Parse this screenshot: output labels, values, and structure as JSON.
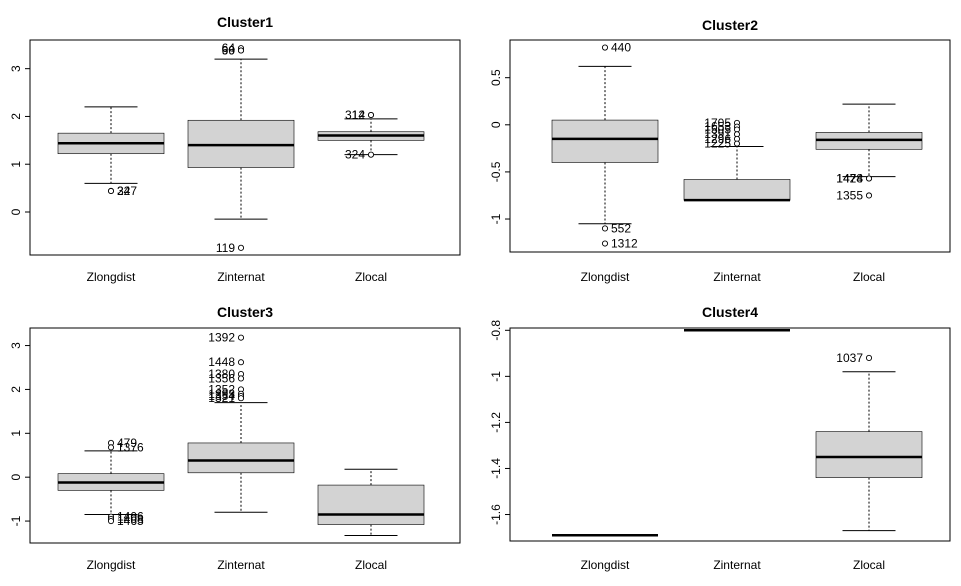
{
  "chart_data": [
    {
      "type": "boxplot",
      "title": "Cluster1",
      "categories": [
        "Zlongdist",
        "Zinternat",
        "Zlocal"
      ],
      "ylim": [
        -0.9,
        3.6
      ],
      "yticks": [
        0,
        1,
        2,
        3
      ],
      "boxes": [
        {
          "whisker_low": 0.6,
          "q1": 1.22,
          "median": 1.44,
          "q3": 1.65,
          "whisker_high": 2.2,
          "outliers": [
            {
              "value": 0.44,
              "label": "24"
            },
            {
              "value": 0.44,
              "label": "327"
            }
          ]
        },
        {
          "whisker_low": -0.15,
          "q1": 0.93,
          "median": 1.4,
          "q3": 1.92,
          "whisker_high": 3.2,
          "outliers": [
            {
              "value": 3.43,
              "label": "64"
            },
            {
              "value": 3.38,
              "label": "69"
            },
            {
              "value": 3.38,
              "label": "90"
            },
            {
              "value": -0.75,
              "label": "119"
            }
          ]
        },
        {
          "whisker_low": 1.2,
          "q1": 1.5,
          "median": 1.6,
          "q3": 1.68,
          "whisker_high": 1.95,
          "outliers": [
            {
              "value": 2.03,
              "label": "14"
            },
            {
              "value": 2.03,
              "label": "312"
            },
            {
              "value": 1.2,
              "label": "324"
            }
          ]
        }
      ]
    },
    {
      "type": "boxplot",
      "title": "Cluster2",
      "categories": [
        "Zlongdist",
        "Zinternat",
        "Zlocal"
      ],
      "ylim": [
        -1.35,
        0.9
      ],
      "yticks": [
        -1.0,
        -0.5,
        0.0,
        0.5
      ],
      "boxes": [
        {
          "whisker_low": -1.05,
          "q1": -0.4,
          "median": -0.15,
          "q3": 0.05,
          "whisker_high": 0.62,
          "outliers": [
            {
              "value": 0.82,
              "label": "440"
            },
            {
              "value": -1.1,
              "label": "552"
            },
            {
              "value": -1.26,
              "label": "1312"
            }
          ]
        },
        {
          "whisker_low": -0.8,
          "q1": -0.8,
          "median": -0.8,
          "q3": -0.58,
          "whisker_high": -0.23,
          "outliers": [
            {
              "value": 0.02,
              "label": "1705"
            },
            {
              "value": -0.02,
              "label": "1653"
            },
            {
              "value": -0.05,
              "label": "1505"
            },
            {
              "value": -0.1,
              "label": "1391"
            },
            {
              "value": -0.15,
              "label": "1296"
            },
            {
              "value": -0.2,
              "label": "1225"
            }
          ]
        },
        {
          "whisker_low": -0.55,
          "q1": -0.26,
          "median": -0.16,
          "q3": -0.08,
          "whisker_high": 0.22,
          "outliers": [
            {
              "value": -0.57,
              "label": "1424"
            },
            {
              "value": -0.57,
              "label": "1478"
            },
            {
              "value": -0.75,
              "label": "1355"
            }
          ]
        }
      ]
    },
    {
      "type": "boxplot",
      "title": "Cluster3",
      "categories": [
        "Zlongdist",
        "Zinternat",
        "Zlocal"
      ],
      "ylim": [
        -1.5,
        3.4
      ],
      "yticks": [
        -1,
        0,
        1,
        2,
        3
      ],
      "boxes": [
        {
          "whisker_low": -0.85,
          "q1": -0.3,
          "median": -0.12,
          "q3": 0.08,
          "whisker_high": 0.6,
          "outliers": [
            {
              "value": 0.78,
              "label": "479"
            },
            {
              "value": 0.68,
              "label": "1376"
            },
            {
              "value": -0.9,
              "label": "1406"
            },
            {
              "value": -0.95,
              "label": "1408"
            },
            {
              "value": -1.0,
              "label": "1465"
            }
          ]
        },
        {
          "whisker_low": -0.8,
          "q1": 0.1,
          "median": 0.38,
          "q3": 0.78,
          "whisker_high": 1.7,
          "outliers": [
            {
              "value": 3.18,
              "label": "1392"
            },
            {
              "value": 2.62,
              "label": "1448"
            },
            {
              "value": 2.35,
              "label": "1380"
            },
            {
              "value": 2.25,
              "label": "1356"
            },
            {
              "value": 2.0,
              "label": "1352"
            },
            {
              "value": 1.9,
              "label": "1293"
            },
            {
              "value": 1.85,
              "label": "1354"
            },
            {
              "value": 1.8,
              "label": "1321"
            }
          ]
        },
        {
          "whisker_low": -1.33,
          "q1": -1.08,
          "median": -0.85,
          "q3": -0.18,
          "whisker_high": 0.18,
          "outliers": []
        }
      ]
    },
    {
      "type": "boxplot",
      "title": "Cluster4",
      "categories": [
        "Zlongdist",
        "Zinternat",
        "Zlocal"
      ],
      "ylim": [
        -1.715,
        -0.79
      ],
      "yticks": [
        -1.6,
        -1.4,
        -1.2,
        -1.0,
        -0.8
      ],
      "boxes": [
        {
          "whisker_low": -1.69,
          "q1": -1.69,
          "median": -1.69,
          "q3": -1.69,
          "whisker_high": -1.69,
          "outliers": []
        },
        {
          "whisker_low": -0.8,
          "q1": -0.8,
          "median": -0.8,
          "q3": -0.8,
          "whisker_high": -0.8,
          "outliers": []
        },
        {
          "whisker_low": -1.67,
          "q1": -1.44,
          "median": -1.35,
          "q3": -1.24,
          "whisker_high": -0.98,
          "outliers": [
            {
              "value": -0.92,
              "label": "1037"
            }
          ]
        }
      ]
    }
  ],
  "colors": {
    "box_fill": "#d3d3d3",
    "box_stroke": "#000000",
    "axis": "#000000",
    "background": "#ffffff",
    "label_highlight": "#b8860b"
  }
}
